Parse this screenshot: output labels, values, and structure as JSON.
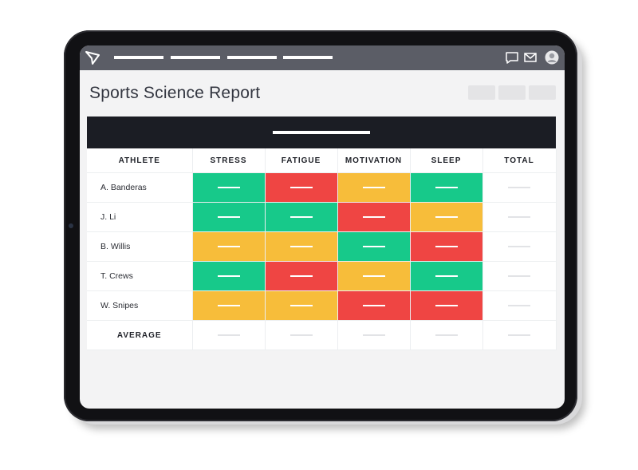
{
  "page": {
    "title": "Sports Science Report"
  },
  "topbar": {
    "icons": [
      "logo-icon",
      "chat-icon",
      "mail-icon",
      "user-avatar-icon"
    ],
    "nav_items": 4
  },
  "report": {
    "columns": [
      "ATHLETE",
      "STRESS",
      "FATIGUE",
      "MOTIVATION",
      "SLEEP",
      "TOTAL"
    ],
    "rows": [
      {
        "athlete": "A. Banderas",
        "cells": [
          "green",
          "red",
          "yellow",
          "green"
        ]
      },
      {
        "athlete": "J. Li",
        "cells": [
          "green",
          "green",
          "red",
          "yellow"
        ]
      },
      {
        "athlete": "B. Willis",
        "cells": [
          "yellow",
          "yellow",
          "green",
          "red"
        ]
      },
      {
        "athlete": "T. Crews",
        "cells": [
          "green",
          "red",
          "yellow",
          "green"
        ]
      },
      {
        "athlete": "W. Snipes",
        "cells": [
          "yellow",
          "yellow",
          "red",
          "red"
        ]
      }
    ],
    "average_label": "AVERAGE"
  },
  "colors": {
    "green": "#17c98a",
    "red": "#ef4543",
    "yellow": "#f7bd3a",
    "topbar": "#5b5d66",
    "banner": "#1b1d24"
  }
}
